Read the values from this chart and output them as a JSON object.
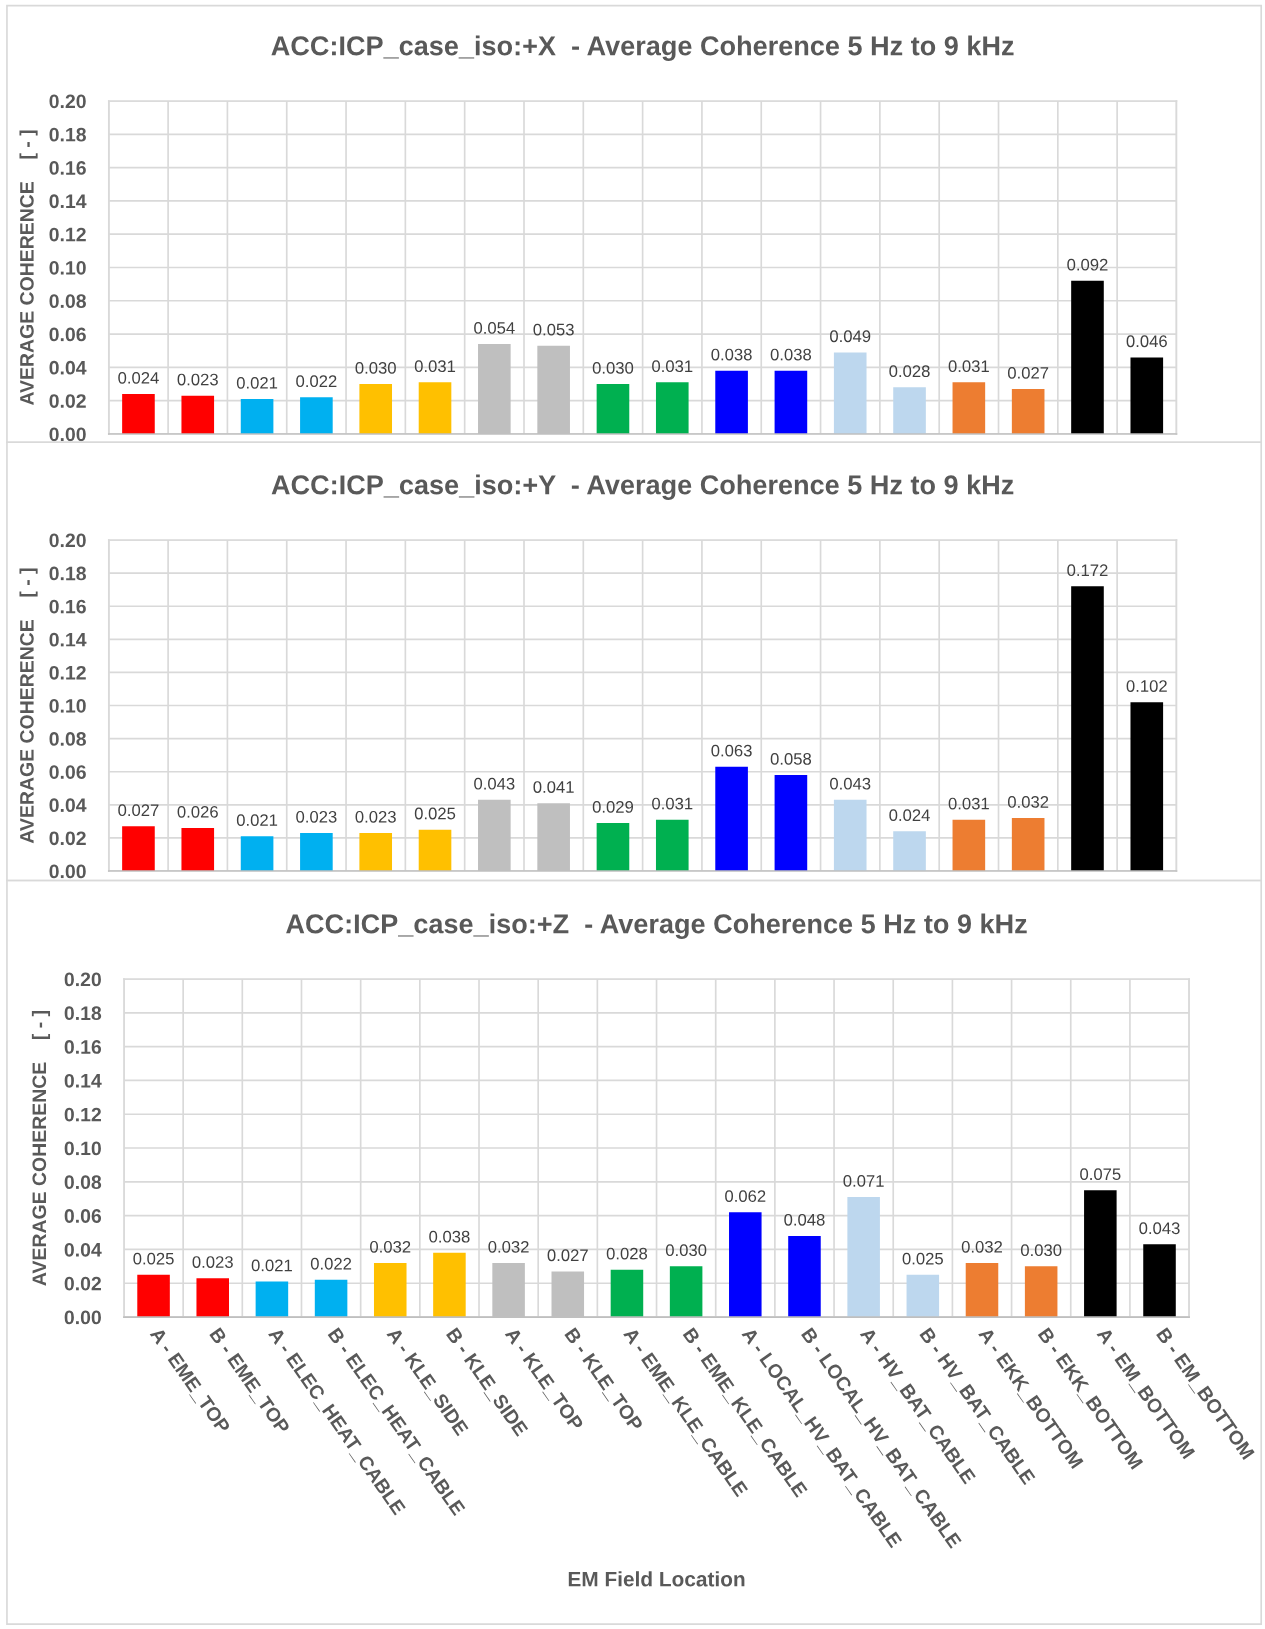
{
  "chart_data": [
    {
      "type": "bar",
      "title": "ACC:ICP_case_iso:+X  - Average Coherence 5 Hz to 9 kHz",
      "ylabel": "AVERAGE COHERENCE    [ - ]",
      "categories": [
        null,
        null,
        null,
        null,
        null,
        null,
        null,
        null,
        null,
        null,
        null,
        null,
        null,
        null,
        null,
        null,
        null,
        null
      ],
      "values": [
        0.024,
        0.023,
        0.021,
        0.022,
        0.03,
        0.031,
        0.054,
        0.053,
        0.03,
        0.031,
        0.038,
        0.038,
        0.049,
        0.028,
        0.031,
        0.027,
        0.092,
        0.046
      ],
      "value_labels": [
        "0.024",
        "0.023",
        "0.021",
        "0.022",
        "0.030",
        "0.031",
        "0.054",
        "0.053",
        "0.030",
        "0.031",
        "0.038",
        "0.038",
        "0.049",
        "0.028",
        "0.031",
        "0.027",
        "0.092",
        "0.046"
      ],
      "colors": [
        "#ff0000",
        "#ff0000",
        "#00b0f0",
        "#00b0f0",
        "#ffc000",
        "#ffc000",
        "#bfbfbf",
        "#bfbfbf",
        "#00b050",
        "#00b050",
        "#0000ff",
        "#0000ff",
        "#bdd7ee",
        "#bdd7ee",
        "#ed7d31",
        "#ed7d31",
        "#000000",
        "#000000"
      ],
      "ylim": [
        0,
        0.2
      ],
      "yticks": [
        {
          "value": 0,
          "label": "0.00"
        },
        {
          "value": 0.02,
          "label": "0.02"
        },
        {
          "value": 0.04,
          "label": "0.04"
        },
        {
          "value": 0.06,
          "label": "0.06"
        },
        {
          "value": 0.08,
          "label": "0.08"
        },
        {
          "value": 0.1,
          "label": "0.10"
        },
        {
          "value": 0.12,
          "label": "0.12"
        },
        {
          "value": 0.14,
          "label": "0.14"
        },
        {
          "value": 0.16,
          "label": "0.16"
        },
        {
          "value": 0.18,
          "label": "0.18"
        },
        {
          "value": 0.2,
          "label": "0.20"
        }
      ],
      "grid": true
    },
    {
      "type": "bar",
      "title": "ACC:ICP_case_iso:+Y  - Average Coherence 5 Hz to 9 kHz",
      "ylabel": "AVERAGE COHERENCE    [ - ]",
      "categories": [
        null,
        null,
        null,
        null,
        null,
        null,
        null,
        null,
        null,
        null,
        null,
        null,
        null,
        null,
        null,
        null,
        null,
        null
      ],
      "values": [
        0.027,
        0.026,
        0.021,
        0.023,
        0.023,
        0.025,
        0.043,
        0.041,
        0.029,
        0.031,
        0.063,
        0.058,
        0.043,
        0.024,
        0.031,
        0.032,
        0.172,
        0.102
      ],
      "value_labels": [
        "0.027",
        "0.026",
        "0.021",
        "0.023",
        "0.023",
        "0.025",
        "0.043",
        "0.041",
        "0.029",
        "0.031",
        "0.063",
        "0.058",
        "0.043",
        "0.024",
        "0.031",
        "0.032",
        "0.172",
        "0.102"
      ],
      "colors": [
        "#ff0000",
        "#ff0000",
        "#00b0f0",
        "#00b0f0",
        "#ffc000",
        "#ffc000",
        "#bfbfbf",
        "#bfbfbf",
        "#00b050",
        "#00b050",
        "#0000ff",
        "#0000ff",
        "#bdd7ee",
        "#bdd7ee",
        "#ed7d31",
        "#ed7d31",
        "#000000",
        "#000000"
      ],
      "ylim": [
        0,
        0.2
      ],
      "yticks": [
        {
          "value": 0,
          "label": "0.00"
        },
        {
          "value": 0.02,
          "label": "0.02"
        },
        {
          "value": 0.04,
          "label": "0.04"
        },
        {
          "value": 0.06,
          "label": "0.06"
        },
        {
          "value": 0.08,
          "label": "0.08"
        },
        {
          "value": 0.1,
          "label": "0.10"
        },
        {
          "value": 0.12,
          "label": "0.12"
        },
        {
          "value": 0.14,
          "label": "0.14"
        },
        {
          "value": 0.16,
          "label": "0.16"
        },
        {
          "value": 0.18,
          "label": "0.18"
        },
        {
          "value": 0.2,
          "label": "0.20"
        }
      ],
      "grid": true
    },
    {
      "type": "bar",
      "title": "ACC:ICP_case_iso:+Z  - Average Coherence 5 Hz to 9 kHz",
      "ylabel": "AVERAGE COHERENCE    [ - ]",
      "xlabel": "EM Field Location",
      "categories": [
        "A - EME_TOP",
        "B - EME_TOP",
        "A - ELEC_HEAT_CABLE",
        "B - ELEC_HEAT_CABLE",
        "A - KLE_SIDE",
        "B - KLE_SIDE",
        "A - KLE_TOP",
        "B - KLE_TOP",
        "A - EME_KLE_CABLE",
        "B - EME_KLE_CABLE",
        "A - LOCAL_HV_BAT_CABLE",
        "B - LOCAL_HV_BAT_CABLE",
        "A - HV_BAT_CABLE",
        "B - HV_BAT_CABLE",
        "A - EKK_BOTTOM",
        "B - EKK_BOTTOM",
        "A - EM_BOTTOM",
        "B - EM_BOTTOM"
      ],
      "values": [
        0.025,
        0.023,
        0.021,
        0.022,
        0.032,
        0.038,
        0.032,
        0.027,
        0.028,
        0.03,
        0.062,
        0.048,
        0.071,
        0.025,
        0.032,
        0.03,
        0.075,
        0.043
      ],
      "value_labels": [
        "0.025",
        "0.023",
        "0.021",
        "0.022",
        "0.032",
        "0.038",
        "0.032",
        "0.027",
        "0.028",
        "0.030",
        "0.062",
        "0.048",
        "0.071",
        "0.025",
        "0.032",
        "0.030",
        "0.075",
        "0.043"
      ],
      "colors": [
        "#ff0000",
        "#ff0000",
        "#00b0f0",
        "#00b0f0",
        "#ffc000",
        "#ffc000",
        "#bfbfbf",
        "#bfbfbf",
        "#00b050",
        "#00b050",
        "#0000ff",
        "#0000ff",
        "#bdd7ee",
        "#bdd7ee",
        "#ed7d31",
        "#ed7d31",
        "#000000",
        "#000000"
      ],
      "ylim": [
        0,
        0.2
      ],
      "yticks": [
        {
          "value": 0,
          "label": "0.00"
        },
        {
          "value": 0.02,
          "label": "0.02"
        },
        {
          "value": 0.04,
          "label": "0.04"
        },
        {
          "value": 0.06,
          "label": "0.06"
        },
        {
          "value": 0.08,
          "label": "0.08"
        },
        {
          "value": 0.1,
          "label": "0.10"
        },
        {
          "value": 0.12,
          "label": "0.12"
        },
        {
          "value": 0.14,
          "label": "0.14"
        },
        {
          "value": 0.16,
          "label": "0.16"
        },
        {
          "value": 0.18,
          "label": "0.18"
        },
        {
          "value": 0.2,
          "label": "0.20"
        }
      ],
      "grid": true
    }
  ]
}
